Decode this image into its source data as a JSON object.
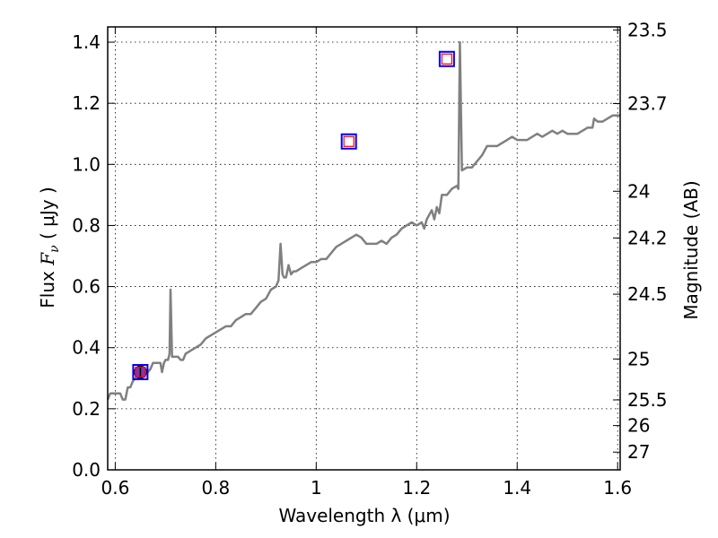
{
  "chart_data": {
    "type": "line",
    "title": "",
    "xlabel": "Wavelength  λ (μm)",
    "ylabel": "Flux  F_ν  ( μJy )",
    "ylabel_parts": {
      "prefix": "Flux  ",
      "symbol": "F",
      "sub": "ν",
      "unit": "  ( μJy )"
    },
    "y2label": "Magnitude (AB)",
    "xlim": [
      0.585,
      1.605
    ],
    "ylim": [
      0.0,
      1.45
    ],
    "grid": true,
    "x_ticks": [
      {
        "value": 0.6,
        "label": "0.6"
      },
      {
        "value": 0.8,
        "label": "0.8"
      },
      {
        "value": 1.0,
        "label": "1"
      },
      {
        "value": 1.2,
        "label": "1.2"
      },
      {
        "value": 1.4,
        "label": "1.4"
      },
      {
        "value": 1.6,
        "label": "1.6"
      }
    ],
    "y_ticks": [
      {
        "value": 0.0,
        "label": "0.0"
      },
      {
        "value": 0.2,
        "label": "0.2"
      },
      {
        "value": 0.4,
        "label": "0.4"
      },
      {
        "value": 0.6,
        "label": "0.6"
      },
      {
        "value": 0.8,
        "label": "0.8"
      },
      {
        "value": 1.0,
        "label": "1.0"
      },
      {
        "value": 1.2,
        "label": "1.2"
      },
      {
        "value": 1.4,
        "label": "1.4"
      }
    ],
    "y2_ticks": [
      {
        "flux": 1.44,
        "label": "23.5"
      },
      {
        "flux": 1.199,
        "label": "23.7"
      },
      {
        "flux": 0.912,
        "label": "24"
      },
      {
        "flux": 0.759,
        "label": "24.2"
      },
      {
        "flux": 0.575,
        "label": "24.5"
      },
      {
        "flux": 0.363,
        "label": "25"
      },
      {
        "flux": 0.229,
        "label": "25.5"
      },
      {
        "flux": 0.145,
        "label": "26"
      },
      {
        "flux": 0.058,
        "label": "27"
      }
    ],
    "series": [
      {
        "name": "spectrum",
        "color": "#808080",
        "points": [
          [
            0.585,
            0.23
          ],
          [
            0.59,
            0.25
          ],
          [
            0.6,
            0.25
          ],
          [
            0.61,
            0.25
          ],
          [
            0.615,
            0.23
          ],
          [
            0.62,
            0.23
          ],
          [
            0.625,
            0.27
          ],
          [
            0.63,
            0.27
          ],
          [
            0.635,
            0.29
          ],
          [
            0.64,
            0.3
          ],
          [
            0.645,
            0.31
          ],
          [
            0.65,
            0.32
          ],
          [
            0.655,
            0.33
          ],
          [
            0.66,
            0.33
          ],
          [
            0.665,
            0.32
          ],
          [
            0.67,
            0.33
          ],
          [
            0.675,
            0.35
          ],
          [
            0.68,
            0.35
          ],
          [
            0.685,
            0.35
          ],
          [
            0.69,
            0.35
          ],
          [
            0.693,
            0.32
          ],
          [
            0.697,
            0.35
          ],
          [
            0.7,
            0.36
          ],
          [
            0.705,
            0.36
          ],
          [
            0.708,
            0.38
          ],
          [
            0.71,
            0.59
          ],
          [
            0.713,
            0.37
          ],
          [
            0.72,
            0.37
          ],
          [
            0.725,
            0.37
          ],
          [
            0.73,
            0.36
          ],
          [
            0.735,
            0.36
          ],
          [
            0.74,
            0.38
          ],
          [
            0.75,
            0.39
          ],
          [
            0.76,
            0.4
          ],
          [
            0.77,
            0.41
          ],
          [
            0.78,
            0.43
          ],
          [
            0.79,
            0.44
          ],
          [
            0.8,
            0.45
          ],
          [
            0.81,
            0.46
          ],
          [
            0.82,
            0.47
          ],
          [
            0.83,
            0.47
          ],
          [
            0.84,
            0.49
          ],
          [
            0.85,
            0.5
          ],
          [
            0.86,
            0.51
          ],
          [
            0.87,
            0.51
          ],
          [
            0.88,
            0.53
          ],
          [
            0.89,
            0.55
          ],
          [
            0.9,
            0.56
          ],
          [
            0.91,
            0.59
          ],
          [
            0.92,
            0.6
          ],
          [
            0.925,
            0.62
          ],
          [
            0.929,
            0.74
          ],
          [
            0.933,
            0.64
          ],
          [
            0.936,
            0.63
          ],
          [
            0.94,
            0.63
          ],
          [
            0.945,
            0.67
          ],
          [
            0.95,
            0.64
          ],
          [
            0.955,
            0.65
          ],
          [
            0.96,
            0.65
          ],
          [
            0.97,
            0.66
          ],
          [
            0.98,
            0.67
          ],
          [
            0.99,
            0.68
          ],
          [
            1.0,
            0.68
          ],
          [
            1.01,
            0.69
          ],
          [
            1.02,
            0.69
          ],
          [
            1.03,
            0.71
          ],
          [
            1.04,
            0.73
          ],
          [
            1.05,
            0.74
          ],
          [
            1.06,
            0.75
          ],
          [
            1.07,
            0.76
          ],
          [
            1.08,
            0.77
          ],
          [
            1.09,
            0.76
          ],
          [
            1.1,
            0.74
          ],
          [
            1.11,
            0.74
          ],
          [
            1.12,
            0.74
          ],
          [
            1.13,
            0.75
          ],
          [
            1.14,
            0.74
          ],
          [
            1.15,
            0.76
          ],
          [
            1.16,
            0.77
          ],
          [
            1.17,
            0.79
          ],
          [
            1.18,
            0.8
          ],
          [
            1.19,
            0.81
          ],
          [
            1.2,
            0.8
          ],
          [
            1.21,
            0.81
          ],
          [
            1.215,
            0.79
          ],
          [
            1.22,
            0.82
          ],
          [
            1.23,
            0.85
          ],
          [
            1.235,
            0.82
          ],
          [
            1.24,
            0.86
          ],
          [
            1.245,
            0.84
          ],
          [
            1.25,
            0.9
          ],
          [
            1.26,
            0.9
          ],
          [
            1.27,
            0.92
          ],
          [
            1.28,
            0.93
          ],
          [
            1.283,
            0.92
          ],
          [
            1.286,
            1.4
          ],
          [
            1.29,
            0.98
          ],
          [
            1.3,
            0.99
          ],
          [
            1.31,
            0.99
          ],
          [
            1.32,
            1.01
          ],
          [
            1.33,
            1.03
          ],
          [
            1.34,
            1.06
          ],
          [
            1.35,
            1.06
          ],
          [
            1.36,
            1.06
          ],
          [
            1.37,
            1.07
          ],
          [
            1.38,
            1.08
          ],
          [
            1.39,
            1.09
          ],
          [
            1.4,
            1.08
          ],
          [
            1.41,
            1.08
          ],
          [
            1.42,
            1.08
          ],
          [
            1.43,
            1.09
          ],
          [
            1.44,
            1.1
          ],
          [
            1.45,
            1.09
          ],
          [
            1.46,
            1.1
          ],
          [
            1.47,
            1.11
          ],
          [
            1.48,
            1.1
          ],
          [
            1.49,
            1.11
          ],
          [
            1.5,
            1.1
          ],
          [
            1.51,
            1.1
          ],
          [
            1.52,
            1.1
          ],
          [
            1.53,
            1.11
          ],
          [
            1.54,
            1.12
          ],
          [
            1.55,
            1.12
          ],
          [
            1.553,
            1.15
          ],
          [
            1.56,
            1.14
          ],
          [
            1.57,
            1.14
          ],
          [
            1.58,
            1.15
          ],
          [
            1.59,
            1.16
          ],
          [
            1.6,
            1.16
          ],
          [
            1.605,
            1.16
          ]
        ]
      }
    ],
    "markers": [
      {
        "name": "photometry-0.65",
        "x": 0.65,
        "y": 0.32,
        "filled": true,
        "err": 0.018,
        "fill": "#8b2fa8"
      },
      {
        "name": "photometry-1.065",
        "x": 1.065,
        "y": 1.075,
        "filled": false
      },
      {
        "name": "photometry-1.26",
        "x": 1.26,
        "y": 1.345,
        "filled": false
      }
    ],
    "colors": {
      "spectrum": "#808080",
      "marker_outer": "#0000ff",
      "marker_inner": "#ff0000",
      "marker_fill": "#8b2fa8",
      "grid": "#000000"
    }
  }
}
